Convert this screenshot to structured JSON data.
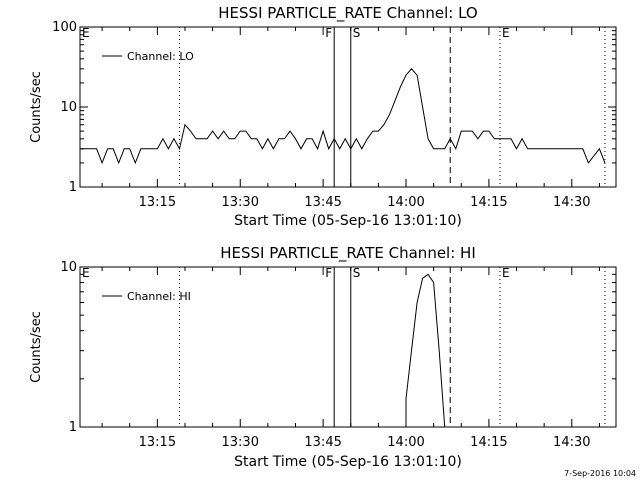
{
  "footer": "7-Sep-2016 10:04",
  "chart_data": [
    {
      "type": "line",
      "title": "HESSI PARTICLE_RATE Channel: LO",
      "xlabel": "Start Time (05-Sep-16 13:01:10)",
      "ylabel": "Counts/sec",
      "yscale": "log",
      "ylim": [
        1,
        100
      ],
      "yticks": [
        "1",
        "10",
        "100"
      ],
      "xlim": [
        "13:01",
        "14:38"
      ],
      "xticks": [
        "13:15",
        "13:30",
        "13:45",
        "14:00",
        "14:15",
        "14:30"
      ],
      "legend": "Channel: LO",
      "legend_position": "top-left",
      "event_markers": [
        {
          "time": "13:01",
          "label": "E",
          "style": "solid"
        },
        {
          "time": "13:19",
          "label": "",
          "style": "dotted"
        },
        {
          "time": "13:47",
          "label": "F",
          "style": "solid"
        },
        {
          "time": "13:50",
          "label": "S",
          "style": "solid"
        },
        {
          "time": "14:08",
          "label": "",
          "style": "dashed"
        },
        {
          "time": "14:17",
          "label": "E",
          "style": "dotted"
        },
        {
          "time": "14:36",
          "label": "",
          "style": "dotted"
        }
      ],
      "series": [
        {
          "x": [
            "13:01",
            "13:04",
            "13:05",
            "13:06",
            "13:07",
            "13:08",
            "13:09",
            "13:10",
            "13:11",
            "13:12",
            "13:14",
            "13:15",
            "13:16",
            "13:17",
            "13:18",
            "13:19",
            "13:20",
            "13:21",
            "13:22",
            "13:23",
            "13:24",
            "13:25",
            "13:26",
            "13:27",
            "13:28",
            "13:29",
            "13:30",
            "13:31",
            "13:32",
            "13:33",
            "13:34",
            "13:35",
            "13:36",
            "13:37",
            "13:38",
            "13:39",
            "13:40",
            "13:41",
            "13:42",
            "13:43",
            "13:44",
            "13:45",
            "13:46",
            "13:47",
            "13:48",
            "13:49",
            "13:50",
            "13:51",
            "13:52",
            "13:53",
            "13:54",
            "13:55",
            "13:56",
            "13:57",
            "13:58",
            "13:59",
            "14:00",
            "14:01",
            "14:02",
            "14:03",
            "14:04",
            "14:05",
            "14:06",
            "14:07",
            "14:08",
            "14:09",
            "14:10",
            "14:11",
            "14:12",
            "14:13",
            "14:14",
            "14:15",
            "14:16",
            "14:17",
            "14:18",
            "14:19",
            "14:20",
            "14:21",
            "14:22",
            "14:25",
            "14:28",
            "14:30",
            "14:31",
            "14:32",
            "14:33",
            "14:35",
            "14:36"
          ],
          "y": [
            3,
            3,
            2,
            3,
            3,
            2,
            3,
            3,
            2,
            3,
            3,
            3,
            4,
            3,
            4,
            3,
            6,
            5,
            4,
            4,
            4,
            5,
            4,
            5,
            4,
            4,
            5,
            5,
            4,
            4,
            3,
            4,
            3,
            4,
            4,
            5,
            4,
            3,
            4,
            4,
            3,
            5,
            3,
            4,
            3,
            4,
            3,
            4,
            3,
            4,
            5,
            5,
            6,
            8,
            12,
            18,
            25,
            30,
            25,
            10,
            4,
            3,
            3,
            3,
            4,
            3,
            5,
            5,
            5,
            4,
            5,
            5,
            4,
            4,
            4,
            4,
            3,
            4,
            3,
            3,
            3,
            3,
            3,
            3,
            2,
            3,
            2
          ]
        }
      ]
    },
    {
      "type": "line",
      "title": "HESSI PARTICLE_RATE Channel: HI",
      "xlabel": "Start Time (05-Sep-16 13:01:10)",
      "ylabel": "Counts/sec",
      "yscale": "log",
      "ylim": [
        1,
        10
      ],
      "yticks": [
        "1",
        "10"
      ],
      "xlim": [
        "13:01",
        "14:38"
      ],
      "xticks": [
        "13:15",
        "13:30",
        "13:45",
        "14:00",
        "14:15",
        "14:30"
      ],
      "legend": "Channel: HI",
      "legend_position": "top-left",
      "event_markers": [
        {
          "time": "13:01",
          "label": "E",
          "style": "solid"
        },
        {
          "time": "13:19",
          "label": "",
          "style": "dotted"
        },
        {
          "time": "13:47",
          "label": "F",
          "style": "solid"
        },
        {
          "time": "13:50",
          "label": "S",
          "style": "solid"
        },
        {
          "time": "14:08",
          "label": "",
          "style": "dashed"
        },
        {
          "time": "14:17",
          "label": "E",
          "style": "dotted"
        },
        {
          "time": "14:36",
          "label": "",
          "style": "dotted"
        }
      ],
      "series": [
        {
          "x": [
            "14:00",
            "14:00",
            "14:01",
            "14:02",
            "14:03",
            "14:04",
            "14:05",
            "14:06",
            "14:07"
          ],
          "y": [
            1,
            1.5,
            3,
            6,
            8.5,
            9,
            8,
            3,
            1
          ]
        }
      ]
    }
  ]
}
